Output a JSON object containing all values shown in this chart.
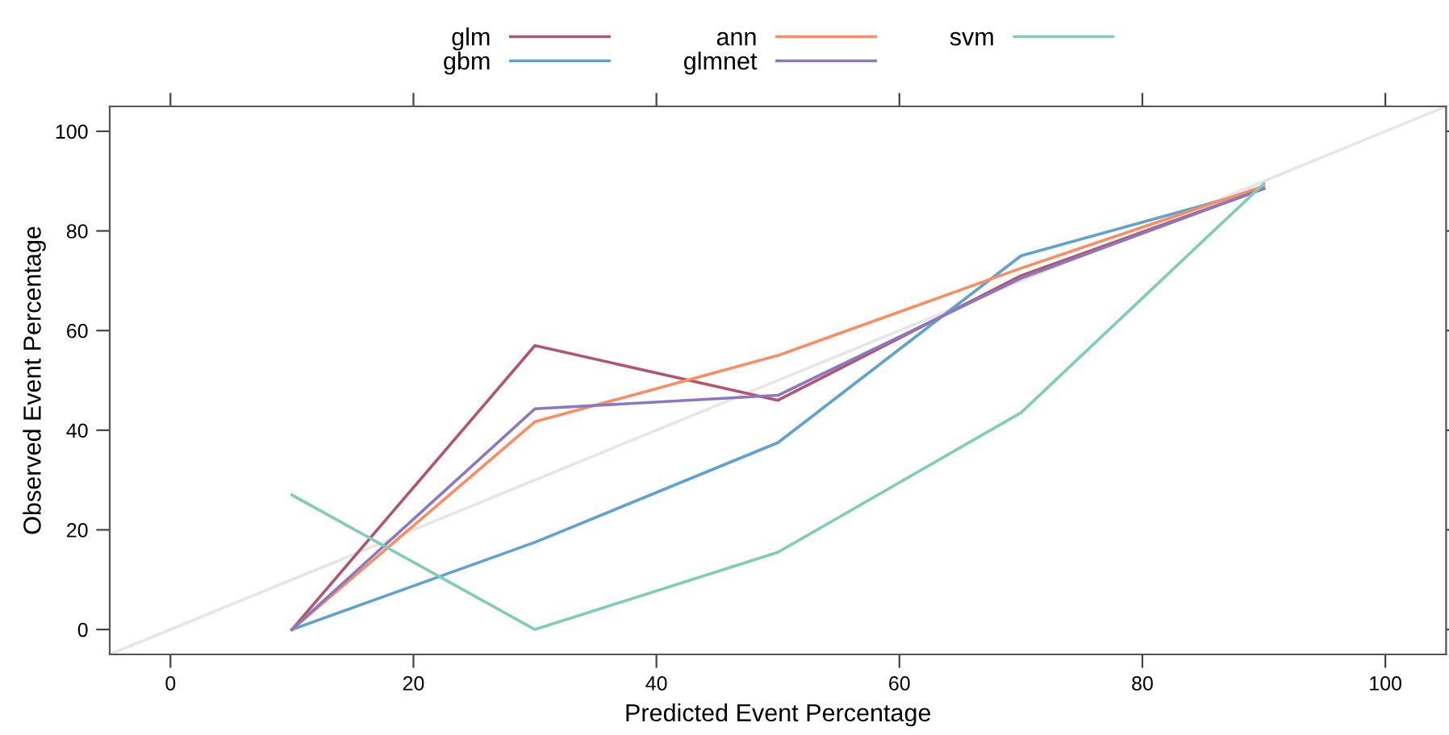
{
  "chart_data": {
    "type": "line",
    "xlabel": "Predicted Event Percentage",
    "ylabel": "Observed Event Percentage",
    "x": [
      10,
      30,
      50,
      70,
      90
    ],
    "series": [
      {
        "name": "glm",
        "color": "#b0566e",
        "values": [
          0,
          57,
          46,
          71,
          88.5
        ]
      },
      {
        "name": "gbm",
        "color": "#5fa2ce",
        "values": [
          0,
          17.5,
          37.5,
          75,
          88.5
        ]
      },
      {
        "name": "ann",
        "color": "#fc8d62",
        "values": [
          0,
          41.7,
          55,
          72.5,
          89
        ]
      },
      {
        "name": "glmnet",
        "color": "#8d78c0",
        "values": [
          0,
          44.3,
          47,
          70.5,
          88.5
        ]
      },
      {
        "name": "svm",
        "color": "#7fcdb4",
        "values": [
          27,
          0,
          15.5,
          43.5,
          89.5
        ]
      },
      {
        "type": "line",
        "color": "#e6e6e6",
        "x": [
          -5,
          105
        ],
        "values": [
          -5,
          105
        ]
      }
    ],
    "xlim": [
      -5,
      105
    ],
    "ylim": [
      -5,
      105
    ],
    "xticks": [
      0,
      20,
      40,
      60,
      80,
      100
    ],
    "yticks": [
      0,
      20,
      40,
      60,
      80,
      100
    ],
    "legend": "top",
    "grid": false,
    "marker": "none",
    "line_style": "solid"
  }
}
